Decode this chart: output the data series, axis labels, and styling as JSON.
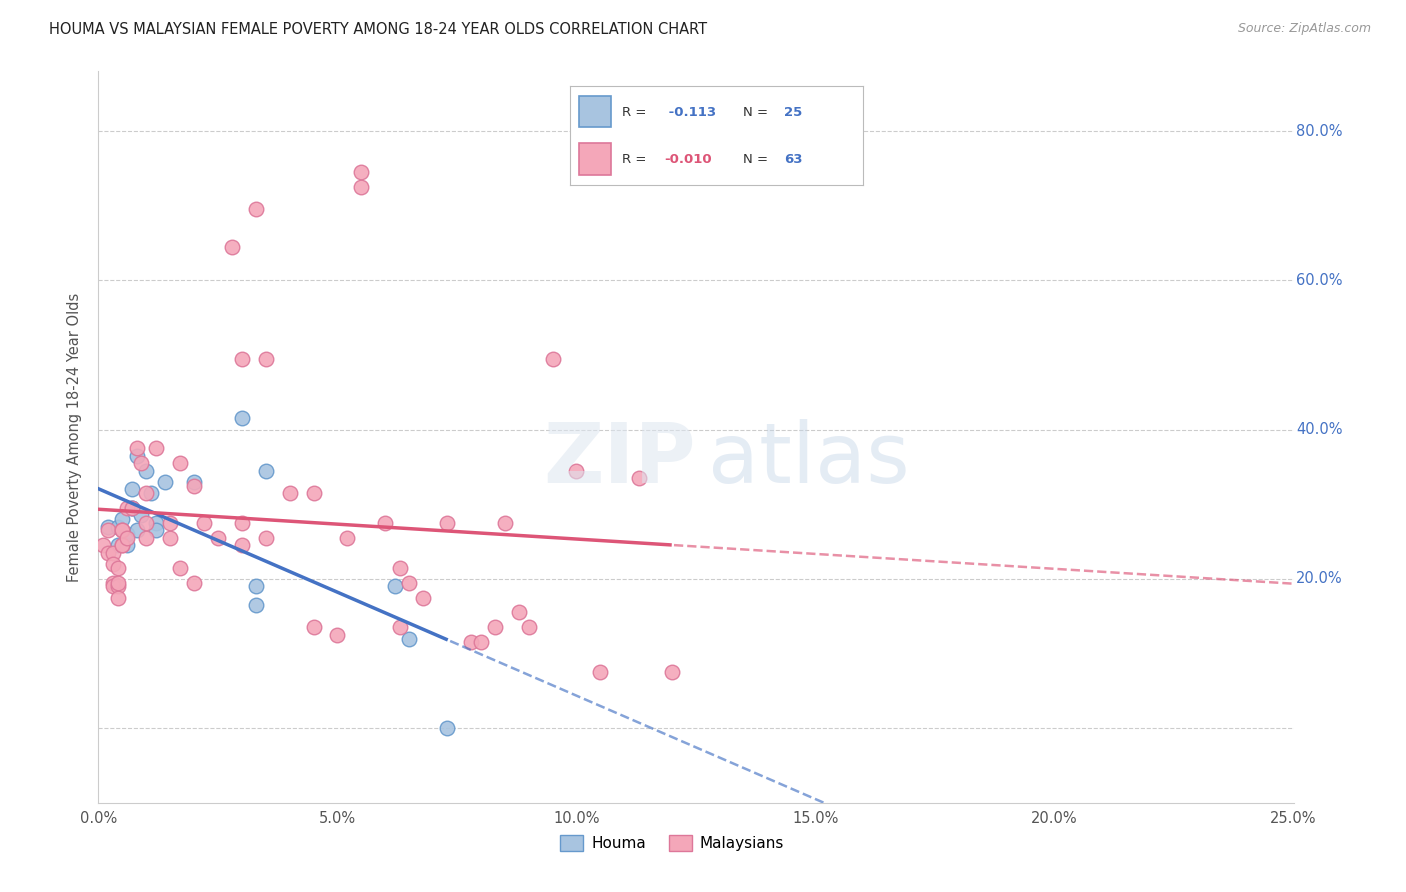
{
  "title": "HOUMA VS MALAYSIAN FEMALE POVERTY AMONG 18-24 YEAR OLDS CORRELATION CHART",
  "source": "Source: ZipAtlas.com",
  "ylabel": "Female Poverty Among 18-24 Year Olds",
  "xlabel_ticks": [
    "0.0%",
    "5.0%",
    "10.0%",
    "15.0%",
    "20.0%",
    "25.0%"
  ],
  "ylabel_ticks_right": [
    "80.0%",
    "60.0%",
    "40.0%",
    "20.0%",
    "0.0%"
  ],
  "xlim": [
    0.0,
    0.25
  ],
  "ylim": [
    -0.1,
    0.88
  ],
  "houma_color": "#a8c4e0",
  "houma_edge": "#6699cc",
  "malaysian_color": "#f4a7b9",
  "malaysian_edge": "#dd7799",
  "trend_blue": "#4472c4",
  "trend_pink": "#dd5577",
  "houma_x": [
    0.002,
    0.004,
    0.004,
    0.005,
    0.006,
    0.006,
    0.007,
    0.007,
    0.007,
    0.008,
    0.008,
    0.009,
    0.01,
    0.011,
    0.012,
    0.012,
    0.014,
    0.02,
    0.03,
    0.033,
    0.033,
    0.035,
    0.062,
    0.065,
    0.073
  ],
  "houma_y": [
    0.27,
    0.245,
    0.27,
    0.28,
    0.245,
    0.26,
    0.295,
    0.295,
    0.32,
    0.365,
    0.265,
    0.285,
    0.345,
    0.315,
    0.275,
    0.265,
    0.33,
    0.33,
    0.415,
    0.19,
    0.165,
    0.345,
    0.19,
    0.12,
    0.0
  ],
  "malaysian_x": [
    0.001,
    0.002,
    0.002,
    0.003,
    0.003,
    0.003,
    0.003,
    0.004,
    0.004,
    0.004,
    0.004,
    0.005,
    0.005,
    0.005,
    0.005,
    0.006,
    0.006,
    0.007,
    0.008,
    0.009,
    0.01,
    0.01,
    0.01,
    0.012,
    0.015,
    0.015,
    0.017,
    0.017,
    0.02,
    0.02,
    0.022,
    0.025,
    0.028,
    0.03,
    0.03,
    0.03,
    0.033,
    0.035,
    0.035,
    0.04,
    0.045,
    0.045,
    0.05,
    0.052,
    0.055,
    0.055,
    0.06,
    0.063,
    0.063,
    0.065,
    0.068,
    0.073,
    0.078,
    0.08,
    0.083,
    0.085,
    0.088,
    0.09,
    0.095,
    0.1,
    0.105,
    0.113,
    0.12
  ],
  "malaysian_y": [
    0.245,
    0.265,
    0.235,
    0.235,
    0.22,
    0.195,
    0.19,
    0.215,
    0.19,
    0.175,
    0.195,
    0.245,
    0.265,
    0.245,
    0.265,
    0.255,
    0.295,
    0.295,
    0.375,
    0.355,
    0.255,
    0.275,
    0.315,
    0.375,
    0.255,
    0.275,
    0.355,
    0.215,
    0.195,
    0.325,
    0.275,
    0.255,
    0.645,
    0.275,
    0.245,
    0.495,
    0.695,
    0.495,
    0.255,
    0.315,
    0.315,
    0.135,
    0.125,
    0.255,
    0.725,
    0.745,
    0.275,
    0.135,
    0.215,
    0.195,
    0.175,
    0.275,
    0.115,
    0.115,
    0.135,
    0.275,
    0.155,
    0.135,
    0.495,
    0.345,
    0.075,
    0.335,
    0.075
  ],
  "legend_r1_label": "R = ",
  "legend_r1_val": " -0.113",
  "legend_n1_label": "N = ",
  "legend_n1_val": "25",
  "legend_r2_label": "R = ",
  "legend_r2_val": "-0.010",
  "legend_n2_label": "N = ",
  "legend_n2_val": "63"
}
